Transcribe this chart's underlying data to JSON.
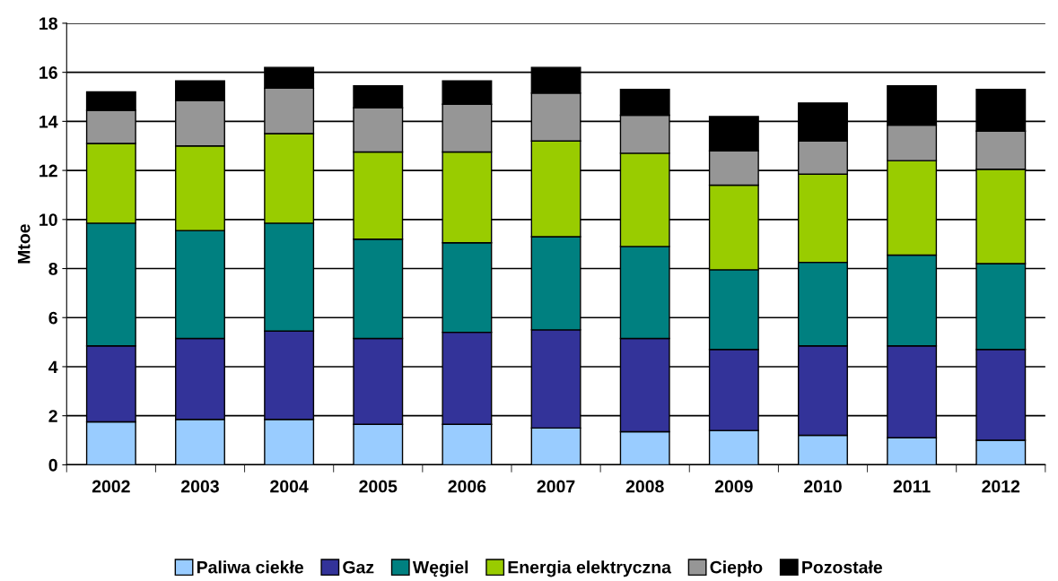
{
  "chart_data": {
    "type": "bar",
    "stacked": true,
    "ylabel": "Mtoe",
    "categories": [
      "2002",
      "2003",
      "2004",
      "2005",
      "2006",
      "2007",
      "2008",
      "2009",
      "2010",
      "2011",
      "2012"
    ],
    "series": [
      {
        "name": "Paliwa ciekłe",
        "color": "#99ccff",
        "values": [
          1.75,
          1.85,
          1.85,
          1.65,
          1.65,
          1.5,
          1.35,
          1.4,
          1.2,
          1.1,
          1.0
        ]
      },
      {
        "name": "Gaz",
        "color": "#333399",
        "values": [
          3.1,
          3.3,
          3.6,
          3.5,
          3.75,
          4.0,
          3.8,
          3.3,
          3.65,
          3.75,
          3.7
        ]
      },
      {
        "name": "Węgiel",
        "color": "#008080",
        "values": [
          5.0,
          4.4,
          4.4,
          4.05,
          3.65,
          3.8,
          3.75,
          3.25,
          3.4,
          3.7,
          3.5
        ]
      },
      {
        "name": "Energia elektryczna",
        "color": "#99cc00",
        "values": [
          3.25,
          3.45,
          3.65,
          3.55,
          3.7,
          3.9,
          3.8,
          3.45,
          3.6,
          3.85,
          3.85
        ]
      },
      {
        "name": "Ciepło",
        "color": "#969696",
        "values": [
          1.35,
          1.85,
          1.85,
          1.8,
          1.95,
          1.95,
          1.55,
          1.4,
          1.35,
          1.45,
          1.55
        ]
      },
      {
        "name": "Pozostałe",
        "color": "#000000",
        "values": [
          0.75,
          0.8,
          0.85,
          0.9,
          0.95,
          1.05,
          1.05,
          1.4,
          1.55,
          1.6,
          1.7
        ]
      }
    ],
    "ylim": [
      0,
      18
    ],
    "yticks": [
      0,
      2,
      4,
      6,
      8,
      10,
      12,
      14,
      16,
      18
    ],
    "grid": "y",
    "legend": "bottom"
  }
}
